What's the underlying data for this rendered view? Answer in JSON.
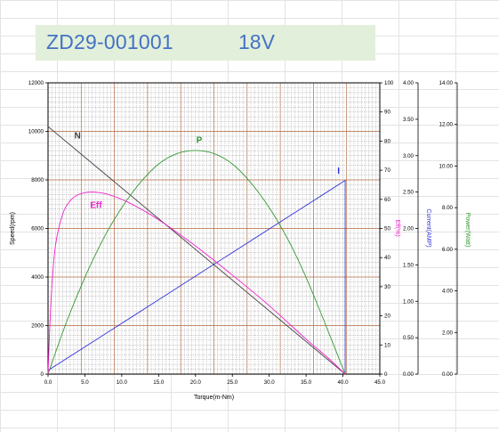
{
  "header": {
    "model": "ZD29-001001",
    "voltage": "18V"
  },
  "chart_data": {
    "type": "line",
    "title": "",
    "xlabel": "Torque(m-Nm)",
    "xlim": [
      0,
      45
    ],
    "x_ticks": [
      "0.0",
      "5.0",
      "10.0",
      "15.0",
      "20.0",
      "25.0",
      "30.0",
      "35.0",
      "40.0",
      "45.0"
    ],
    "grid": true,
    "axes": {
      "speed": {
        "label": "Speed(rpm)",
        "lim": [
          0,
          12000
        ],
        "ticks": [
          "0",
          "2000",
          "4000",
          "6000",
          "8000",
          "10000",
          "12000"
        ]
      },
      "efficiency": {
        "label": "Eff(%)",
        "lim": [
          0,
          100
        ],
        "ticks": [
          "0",
          "10",
          "20",
          "30",
          "40",
          "50",
          "60",
          "70",
          "80",
          "90",
          "100"
        ]
      },
      "current": {
        "label": "Current(AMP)",
        "lim": [
          0,
          4.0
        ],
        "ticks": [
          "0.00",
          "0.50",
          "1.00",
          "1.50",
          "2.00",
          "2.50",
          "3.00",
          "3.50",
          "4.00"
        ]
      },
      "power": {
        "label": "Power(Watt)",
        "lim": [
          0,
          14.0
        ],
        "ticks": [
          "0.00",
          "2.00",
          "4.00",
          "6.00",
          "8.00",
          "10.00",
          "12.00",
          "14.00"
        ]
      }
    },
    "series": [
      {
        "name": "N",
        "axis": "speed",
        "color": "#404040",
        "x": [
          0,
          40.3
        ],
        "y": [
          10200,
          0
        ]
      },
      {
        "name": "I",
        "axis": "current",
        "color": "#3333dd",
        "x": [
          0,
          40.3,
          40.3
        ],
        "y": [
          0.05,
          2.66,
          0
        ]
      },
      {
        "name": "P",
        "axis": "power",
        "color": "#339933",
        "x": [
          0,
          2.5,
          5,
          7.5,
          10,
          12.5,
          15,
          17.5,
          20,
          22.5,
          25,
          27.5,
          30,
          32.5,
          35,
          37.5,
          40.3
        ],
        "y": [
          0,
          2.5,
          4.65,
          6.5,
          8.0,
          9.2,
          10.1,
          10.6,
          10.75,
          10.6,
          10.1,
          9.2,
          8.0,
          6.5,
          4.65,
          2.5,
          0
        ]
      },
      {
        "name": "Eff",
        "axis": "efficiency",
        "color": "#ee22cc",
        "x": [
          0,
          0.4,
          1,
          2,
          3,
          4,
          5,
          6,
          7,
          8,
          10,
          12,
          15,
          20,
          25,
          30,
          35,
          38,
          40.3
        ],
        "y": [
          0,
          25,
          44,
          55,
          59.5,
          61.5,
          62.3,
          62.5,
          62.3,
          61.8,
          60,
          57.5,
          53,
          44,
          34,
          23.5,
          12,
          5.5,
          0
        ]
      }
    ],
    "annotations": [
      {
        "text": "N",
        "series": "N"
      },
      {
        "text": "P",
        "series": "P"
      },
      {
        "text": "I",
        "series": "I"
      },
      {
        "text": "Eff",
        "series": "Eff"
      }
    ]
  }
}
